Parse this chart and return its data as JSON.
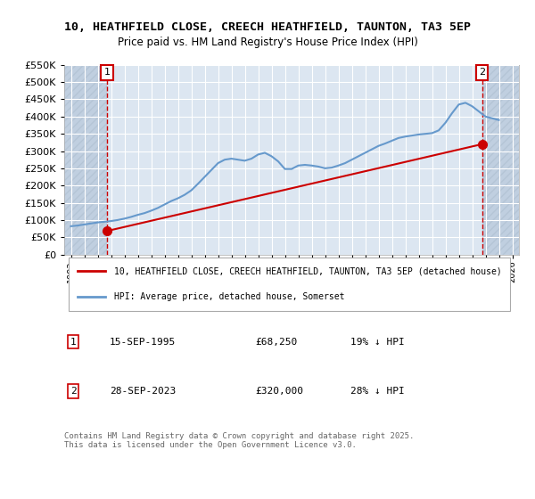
{
  "title": "10, HEATHFIELD CLOSE, CREECH HEATHFIELD, TAUNTON, TA3 5EP",
  "subtitle": "Price paid vs. HM Land Registry's House Price Index (HPI)",
  "ylabel": "",
  "xlabel": "",
  "ylim": [
    0,
    550000
  ],
  "yticks": [
    0,
    50000,
    100000,
    150000,
    200000,
    250000,
    300000,
    350000,
    400000,
    450000,
    500000,
    550000
  ],
  "ytick_labels": [
    "£0",
    "£50K",
    "£100K",
    "£150K",
    "£200K",
    "£250K",
    "£300K",
    "£350K",
    "£400K",
    "£450K",
    "£500K",
    "£550K"
  ],
  "xlim_left": 1992.5,
  "xlim_right": 2026.5,
  "bg_color": "#dce6f1",
  "plot_bg_color": "#dce6f1",
  "hatch_color": "#c0cfe0",
  "grid_color": "#ffffff",
  "red_color": "#cc0000",
  "blue_color": "#6699cc",
  "legend_label_red": "10, HEATHFIELD CLOSE, CREECH HEATHFIELD, TAUNTON, TA3 5EP (detached house)",
  "legend_label_blue": "HPI: Average price, detached house, Somerset",
  "point1_x": 1995.71,
  "point1_y": 68250,
  "point2_x": 2023.74,
  "point2_y": 320000,
  "annotation1_label": "1",
  "annotation2_label": "2",
  "note1_box_label": "1",
  "note1_date": "15-SEP-1995",
  "note1_price": "£68,250",
  "note1_hpi": "19% ↓ HPI",
  "note2_box_label": "2",
  "note2_date": "28-SEP-2023",
  "note2_price": "£320,000",
  "note2_hpi": "28% ↓ HPI",
  "footer": "Contains HM Land Registry data © Crown copyright and database right 2025.\nThis data is licensed under the Open Government Licence v3.0.",
  "hpi_years": [
    1993,
    1993.5,
    1994,
    1994.5,
    1995,
    1995.5,
    1996,
    1996.5,
    1997,
    1997.5,
    1998,
    1998.5,
    1999,
    1999.5,
    2000,
    2000.5,
    2001,
    2001.5,
    2002,
    2002.5,
    2003,
    2003.5,
    2004,
    2004.5,
    2005,
    2005.5,
    2006,
    2006.5,
    2007,
    2007.5,
    2008,
    2008.5,
    2009,
    2009.5,
    2010,
    2010.5,
    2011,
    2011.5,
    2012,
    2012.5,
    2013,
    2013.5,
    2014,
    2014.5,
    2015,
    2015.5,
    2016,
    2016.5,
    2017,
    2017.5,
    2018,
    2018.5,
    2019,
    2019.5,
    2020,
    2020.5,
    2021,
    2021.5,
    2022,
    2022.5,
    2023,
    2023.5,
    2024,
    2024.5,
    2025
  ],
  "hpi_values": [
    82000,
    84000,
    87000,
    90000,
    93000,
    95000,
    97000,
    100000,
    104000,
    109000,
    115000,
    120000,
    127000,
    135000,
    145000,
    155000,
    163000,
    173000,
    186000,
    205000,
    225000,
    245000,
    265000,
    275000,
    278000,
    275000,
    272000,
    278000,
    290000,
    295000,
    285000,
    270000,
    248000,
    248000,
    258000,
    260000,
    258000,
    255000,
    250000,
    252000,
    258000,
    265000,
    275000,
    285000,
    295000,
    305000,
    315000,
    322000,
    330000,
    338000,
    342000,
    345000,
    348000,
    350000,
    352000,
    360000,
    382000,
    410000,
    435000,
    440000,
    430000,
    415000,
    400000,
    395000,
    390000
  ],
  "price_years": [
    1995.71,
    2023.74
  ],
  "price_values": [
    68250,
    320000
  ],
  "hatch_left_end": 1995.71,
  "hatch_right_start": 2023.74
}
